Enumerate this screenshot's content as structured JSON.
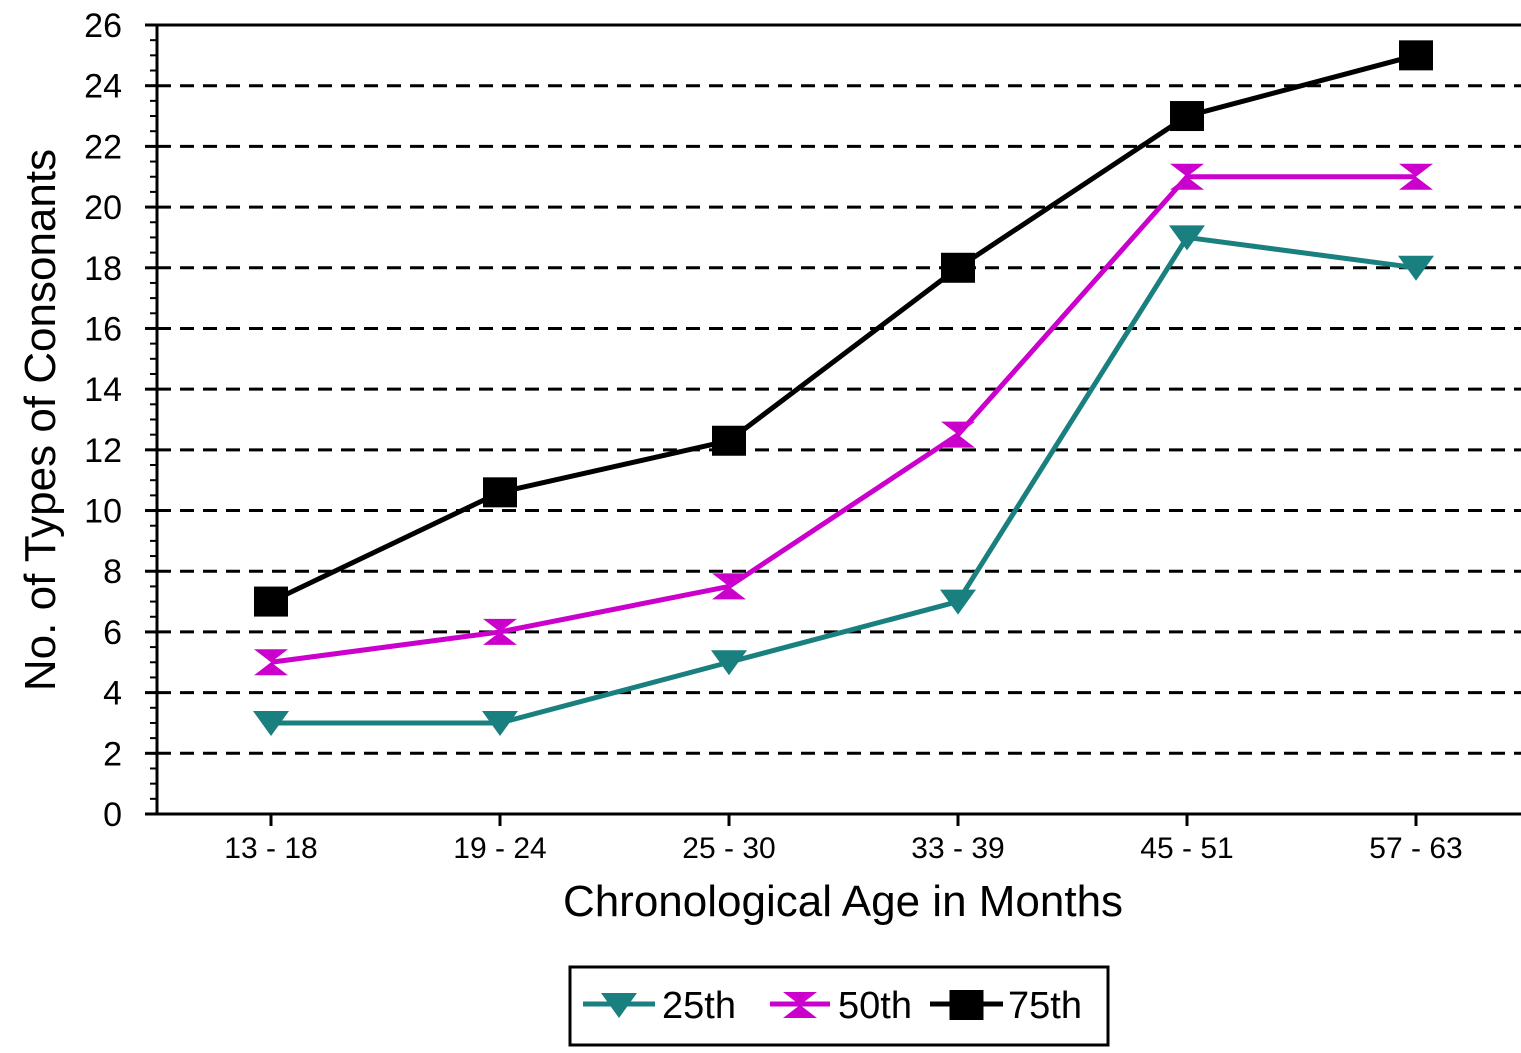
{
  "chart_data": {
    "type": "line",
    "title": "",
    "xlabel": "Chronological Age in Months",
    "ylabel": "No. of Types of Consonants",
    "categories": [
      "13 - 18",
      "19 - 24",
      "25 - 30",
      "33 - 39",
      "45 - 51",
      "57 - 63"
    ],
    "ylim": [
      0,
      26
    ],
    "yticks": [
      0,
      2,
      4,
      6,
      8,
      10,
      12,
      14,
      16,
      18,
      20,
      22,
      24,
      26
    ],
    "grid": "horizontal dashed",
    "legend_position": "bottom-center",
    "series": [
      {
        "name": "25th",
        "color": "#1a7f7f",
        "marker": "triangle-down",
        "values": [
          3,
          3,
          5,
          7,
          19,
          18
        ]
      },
      {
        "name": "50th",
        "color": "#cc00cc",
        "marker": "bowtie",
        "values": [
          5,
          6,
          7.5,
          12.5,
          21,
          21
        ]
      },
      {
        "name": "75th",
        "color": "#000000",
        "marker": "square",
        "values": [
          7,
          10.6,
          12.3,
          18,
          23,
          25
        ]
      }
    ]
  }
}
